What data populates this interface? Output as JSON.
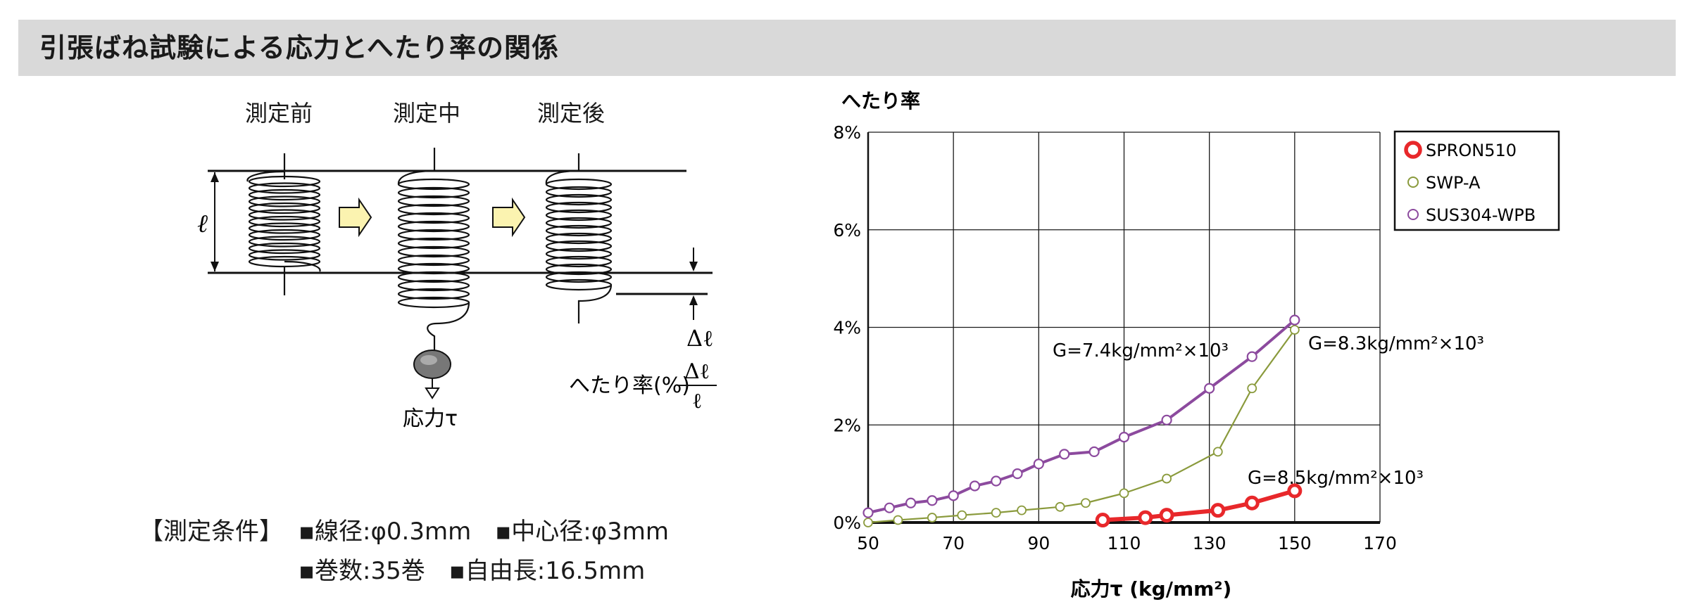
{
  "header": {
    "title": "引張ばね試験による応力とへたり率の関係"
  },
  "diagram": {
    "stages": [
      "測定前",
      "測定中",
      "測定後"
    ],
    "length_label": "ℓ",
    "delta_label": "Δℓ",
    "formula_prefix": "へたり率(%)",
    "formula_numerator": "Δℓ",
    "formula_denominator": "ℓ",
    "stress_label": "応力τ"
  },
  "conditions": {
    "heading": "【測定条件】",
    "line1": "▪線径:φ0.3mm　▪中心径:φ3mm",
    "line2": "▪巻数:35巻　▪自由長:16.5mm"
  },
  "chart_data": {
    "type": "line",
    "title": "",
    "ylabel": "へたり率",
    "xlabel": "応力τ (kg/mm²)",
    "xlim": [
      50,
      170
    ],
    "ylim": [
      0,
      8
    ],
    "x_ticks": [
      "50",
      "70",
      "90",
      "110",
      "130",
      "150",
      "170"
    ],
    "y_ticks": [
      "0%",
      "2%",
      "4%",
      "6%",
      "8%"
    ],
    "grid": true,
    "legend_position": "top-right",
    "series": [
      {
        "name": "SPRON510",
        "color": "#e8282b",
        "x": [
          105,
          115,
          120,
          132,
          140,
          150
        ],
        "y": [
          0.05,
          0.1,
          0.15,
          0.25,
          0.4,
          0.65
        ]
      },
      {
        "name": "SWP-A",
        "color": "#8a9a3c",
        "x": [
          50,
          57,
          65,
          72,
          80,
          86,
          95,
          101,
          110,
          120,
          132,
          140,
          150
        ],
        "y": [
          0.0,
          0.05,
          0.1,
          0.15,
          0.2,
          0.25,
          0.32,
          0.4,
          0.6,
          0.9,
          1.45,
          2.75,
          3.95
        ]
      },
      {
        "name": "SUS304-WPB",
        "color": "#8c4a9e",
        "x": [
          50,
          55,
          60,
          65,
          70,
          75,
          80,
          85,
          90,
          96,
          103,
          110,
          120,
          130,
          140,
          150
        ],
        "y": [
          0.2,
          0.3,
          0.4,
          0.45,
          0.55,
          0.75,
          0.85,
          1.0,
          1.2,
          1.4,
          1.45,
          1.75,
          2.1,
          2.75,
          3.4,
          4.15
        ]
      }
    ],
    "annotations": [
      "G=7.4kg/mm²×10³",
      "G=8.3kg/mm²×10³",
      "G=8.5kg/mm²×10³"
    ]
  }
}
